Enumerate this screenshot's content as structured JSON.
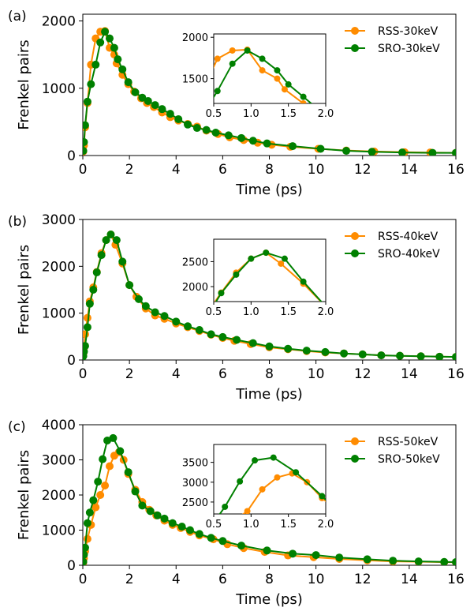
{
  "colors": {
    "rss": "#ff8c00",
    "sro": "#008000",
    "axis": "#000000"
  },
  "chart_data": [
    {
      "type": "line",
      "panel_label": "(a)",
      "xlabel": "Time (ps)",
      "ylabel": "Frenkel pairs",
      "xlim": [
        0,
        16
      ],
      "ylim": [
        0,
        2100
      ],
      "xticks": [
        0,
        2,
        4,
        6,
        8,
        10,
        12,
        14,
        16
      ],
      "yticks": [
        0,
        1000,
        2000
      ],
      "series": [
        {
          "name": "RSS-30keV",
          "color": "#ff8c00",
          "x": [
            0.02,
            0.05,
            0.1,
            0.2,
            0.35,
            0.55,
            0.75,
            0.95,
            1.15,
            1.35,
            1.45,
            1.7,
            1.95,
            2.2,
            2.5,
            2.75,
            3.05,
            3.4,
            3.75,
            4.1,
            4.5,
            4.9,
            5.3,
            5.8,
            6.3,
            6.9,
            7.5,
            8.1,
            8.9,
            10.1,
            11.3,
            12.5,
            13.8,
            14.9,
            16.0
          ],
          "y": [
            60,
            150,
            420,
            780,
            1350,
            1740,
            1840,
            1850,
            1600,
            1500,
            1370,
            1200,
            1060,
            950,
            850,
            780,
            720,
            640,
            570,
            520,
            470,
            430,
            370,
            320,
            270,
            230,
            190,
            160,
            130,
            100,
            75,
            60,
            50,
            45,
            40
          ]
        },
        {
          "name": "SRO-30keV",
          "color": "#008000",
          "x": [
            0.02,
            0.05,
            0.1,
            0.2,
            0.35,
            0.55,
            0.75,
            0.95,
            1.15,
            1.35,
            1.5,
            1.7,
            1.95,
            2.25,
            2.55,
            2.8,
            3.1,
            3.4,
            3.75,
            4.1,
            4.5,
            4.9,
            5.3,
            5.7,
            6.25,
            6.8,
            7.3,
            7.9,
            9.0,
            10.2,
            11.3,
            12.4,
            13.7,
            15.0,
            16.0
          ],
          "y": [
            70,
            200,
            450,
            800,
            1060,
            1350,
            1680,
            1840,
            1740,
            1600,
            1430,
            1280,
            1090,
            940,
            860,
            810,
            750,
            690,
            620,
            540,
            460,
            410,
            380,
            340,
            300,
            260,
            220,
            180,
            140,
            100,
            70,
            55,
            45,
            40,
            40
          ]
        }
      ],
      "legend": {
        "position": "top-right",
        "entries": [
          "RSS-30keV",
          "SRO-30keV"
        ]
      },
      "inset": {
        "xlim": [
          0.5,
          2.0
        ],
        "ylim": [
          1200,
          2040
        ],
        "xticks": [
          0.5,
          1.0,
          1.5,
          2.0
        ],
        "xtick_labels": [
          "0.5",
          "1.0",
          "1.5",
          "2.0"
        ],
        "yticks": [
          1500,
          2000
        ],
        "ytick_labels": [
          "1500",
          "2000"
        ]
      }
    },
    {
      "type": "line",
      "panel_label": "(b)",
      "xlabel": "Time (ps)",
      "ylabel": "Frenkel pairs",
      "xlim": [
        0,
        16
      ],
      "ylim": [
        0,
        3000
      ],
      "xticks": [
        0,
        2,
        4,
        6,
        8,
        10,
        12,
        14,
        16
      ],
      "yticks": [
        0,
        1000,
        2000,
        3000
      ],
      "series": [
        {
          "name": "RSS-40keV",
          "color": "#ff8c00",
          "x": [
            0.02,
            0.05,
            0.1,
            0.2,
            0.3,
            0.45,
            0.6,
            0.8,
            1.0,
            1.2,
            1.4,
            1.7,
            2.0,
            2.3,
            2.7,
            3.1,
            3.5,
            4.0,
            4.5,
            5.0,
            5.5,
            6.0,
            6.5,
            7.2,
            8.0,
            8.8,
            9.6,
            10.4,
            11.2,
            12.0,
            12.8,
            13.6,
            14.5,
            15.3,
            16.0
          ],
          "y": [
            120,
            250,
            550,
            900,
            1250,
            1550,
            1880,
            2280,
            2560,
            2680,
            2460,
            2060,
            1600,
            1350,
            1100,
            950,
            880,
            780,
            700,
            620,
            540,
            470,
            410,
            340,
            270,
            230,
            190,
            160,
            140,
            120,
            100,
            90,
            80,
            70,
            65
          ]
        },
        {
          "name": "SRO-40keV",
          "color": "#008000",
          "x": [
            0.02,
            0.05,
            0.1,
            0.2,
            0.3,
            0.45,
            0.6,
            0.8,
            1.0,
            1.2,
            1.45,
            1.7,
            2.0,
            2.4,
            2.7,
            3.1,
            3.5,
            4.0,
            4.5,
            5.0,
            5.5,
            6.0,
            6.6,
            7.3,
            8.0,
            8.8,
            9.6,
            10.4,
            11.2,
            12.0,
            12.8,
            13.6,
            14.5,
            15.3,
            16.0
          ],
          "y": [
            80,
            180,
            300,
            700,
            1200,
            1500,
            1870,
            2240,
            2560,
            2680,
            2560,
            2100,
            1600,
            1300,
            1150,
            1020,
            940,
            820,
            720,
            640,
            550,
            490,
            430,
            360,
            290,
            240,
            200,
            170,
            140,
            120,
            100,
            90,
            80,
            70,
            65
          ]
        }
      ],
      "legend": {
        "position": "top-right",
        "entries": [
          "RSS-40keV",
          "SRO-40keV"
        ]
      },
      "inset": {
        "xlim": [
          0.5,
          2.0
        ],
        "ylim": [
          1700,
          2950
        ],
        "xticks": [
          0.5,
          1.0,
          1.5,
          2.0
        ],
        "xtick_labels": [
          "0.5",
          "1.0",
          "1.5",
          "2.0"
        ],
        "yticks": [
          2000,
          2500
        ],
        "ytick_labels": [
          "2000",
          "2500"
        ]
      }
    },
    {
      "type": "line",
      "panel_label": "(c)",
      "xlabel": "Time (ps)",
      "ylabel": "Frenkel pairs",
      "xlim": [
        0,
        16
      ],
      "ylim": [
        0,
        4000
      ],
      "xticks": [
        0,
        2,
        4,
        6,
        8,
        10,
        12,
        14,
        16
      ],
      "yticks": [
        0,
        1000,
        2000,
        3000,
        4000
      ],
      "series": [
        {
          "name": "RSS-50keV",
          "color": "#ff8c00",
          "x": [
            0.02,
            0.05,
            0.1,
            0.2,
            0.35,
            0.55,
            0.75,
            0.95,
            1.15,
            1.35,
            1.55,
            1.75,
            1.95,
            2.25,
            2.55,
            2.85,
            3.15,
            3.5,
            3.85,
            4.2,
            4.6,
            5.0,
            5.6,
            6.2,
            6.9,
            7.8,
            8.8,
            9.9,
            11.0,
            12.2,
            13.3,
            14.4,
            15.5,
            16.0
          ],
          "y": [
            80,
            200,
            400,
            750,
            1150,
            1650,
            2000,
            2270,
            2820,
            3120,
            3220,
            3000,
            2600,
            2150,
            1800,
            1580,
            1420,
            1270,
            1150,
            1060,
            950,
            850,
            740,
            600,
            490,
            380,
            280,
            230,
            180,
            140,
            110,
            100,
            90,
            85
          ]
        },
        {
          "name": "SRO-50keV",
          "color": "#008000",
          "x": [
            0.02,
            0.05,
            0.1,
            0.2,
            0.3,
            0.45,
            0.65,
            0.85,
            1.05,
            1.3,
            1.6,
            1.95,
            2.25,
            2.55,
            2.9,
            3.2,
            3.5,
            3.85,
            4.25,
            4.6,
            5.0,
            5.5,
            6.0,
            6.8,
            7.9,
            9.0,
            10.0,
            11.0,
            12.2,
            13.3,
            14.4,
            15.5,
            16.0
          ],
          "y": [
            100,
            300,
            500,
            1200,
            1500,
            1850,
            2380,
            3020,
            3550,
            3620,
            3250,
            2650,
            2100,
            1700,
            1540,
            1420,
            1330,
            1200,
            1100,
            1000,
            890,
            780,
            690,
            560,
            420,
            330,
            290,
            220,
            170,
            130,
            110,
            95,
            90
          ]
        }
      ],
      "legend": {
        "position": "top-right",
        "entries": [
          "RSS-50keV",
          "SRO-50keV"
        ]
      },
      "inset": {
        "xlim": [
          0.5,
          2.0
        ],
        "ylim": [
          2200,
          3950
        ],
        "xticks": [
          0.5,
          1.0,
          1.5,
          2.0
        ],
        "xtick_labels": [
          "0.5",
          "1.0",
          "1.5",
          "2.0"
        ],
        "yticks": [
          2500,
          3000,
          3500
        ],
        "ytick_labels": [
          "2500",
          "3000",
          "3500"
        ]
      }
    }
  ]
}
